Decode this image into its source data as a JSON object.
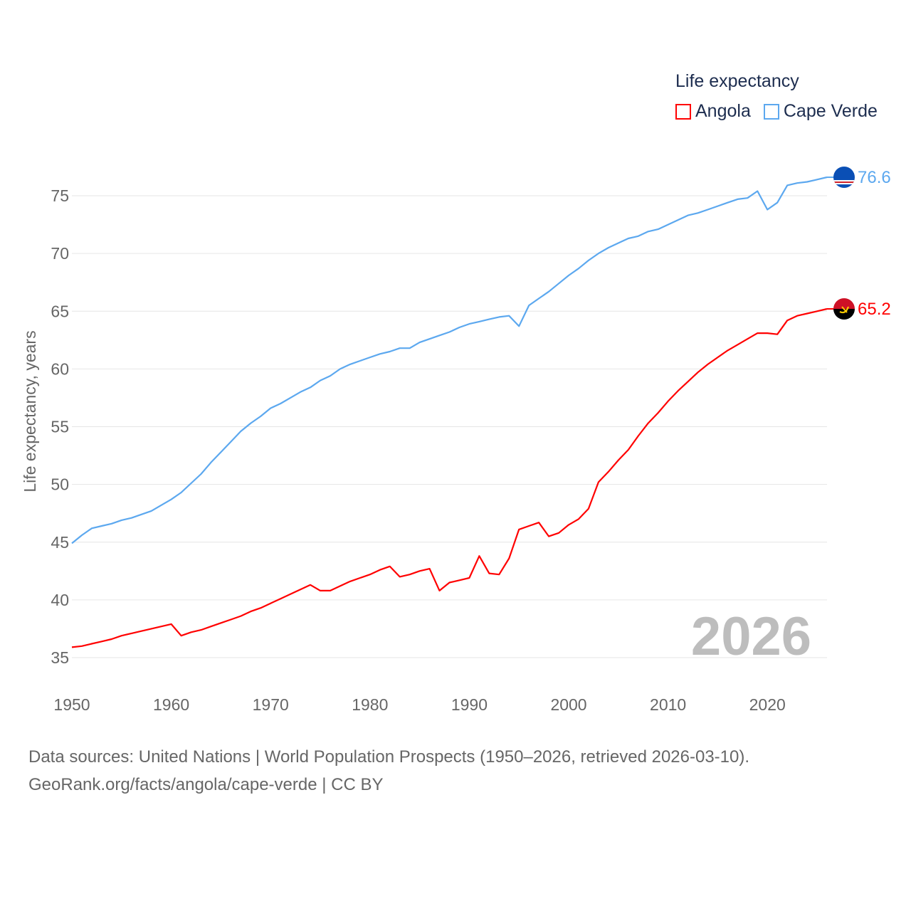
{
  "chart_data": {
    "type": "line",
    "title": "Life expectancy",
    "xlabel": "",
    "ylabel": "Life expectancy, years",
    "xlim": [
      1950,
      2026
    ],
    "ylim": [
      33,
      78
    ],
    "x_ticks": [
      1950,
      1960,
      1970,
      1980,
      1990,
      2000,
      2010,
      2020
    ],
    "y_ticks": [
      35,
      40,
      45,
      50,
      55,
      60,
      65,
      70,
      75
    ],
    "grid": true,
    "legend_placement": "top-right",
    "year_watermark": "2026",
    "x": [
      1950,
      1951,
      1952,
      1953,
      1954,
      1955,
      1956,
      1957,
      1958,
      1959,
      1960,
      1961,
      1962,
      1963,
      1964,
      1965,
      1966,
      1967,
      1968,
      1969,
      1970,
      1971,
      1972,
      1973,
      1974,
      1975,
      1976,
      1977,
      1978,
      1979,
      1980,
      1981,
      1982,
      1983,
      1984,
      1985,
      1986,
      1987,
      1988,
      1989,
      1990,
      1991,
      1992,
      1993,
      1994,
      1995,
      1996,
      1997,
      1998,
      1999,
      2000,
      2001,
      2002,
      2003,
      2004,
      2005,
      2006,
      2007,
      2008,
      2009,
      2010,
      2011,
      2012,
      2013,
      2014,
      2015,
      2016,
      2017,
      2018,
      2019,
      2020,
      2021,
      2022,
      2023,
      2024,
      2025,
      2026
    ],
    "series": [
      {
        "name": "Angola",
        "color": "#ff0000",
        "end_label": "65.2",
        "values": [
          35.9,
          36.0,
          36.2,
          36.4,
          36.6,
          36.9,
          37.1,
          37.3,
          37.5,
          37.7,
          37.9,
          36.9,
          37.2,
          37.4,
          37.7,
          38.0,
          38.3,
          38.6,
          39.0,
          39.3,
          39.7,
          40.1,
          40.5,
          40.9,
          41.3,
          40.8,
          40.8,
          41.2,
          41.6,
          41.9,
          42.2,
          42.6,
          42.9,
          42.0,
          42.2,
          42.5,
          42.7,
          40.8,
          41.5,
          41.7,
          41.9,
          43.8,
          42.3,
          42.2,
          43.6,
          46.1,
          46.4,
          46.7,
          45.5,
          45.8,
          46.5,
          47.0,
          47.9,
          50.2,
          51.1,
          52.1,
          53.0,
          54.2,
          55.3,
          56.2,
          57.2,
          58.1,
          58.9,
          59.7,
          60.4,
          61.0,
          61.6,
          62.1,
          62.6,
          63.1,
          63.1,
          63.0,
          64.2,
          64.6,
          64.8,
          65.0,
          65.2
        ]
      },
      {
        "name": "Cape Verde",
        "color": "#5ca8ef",
        "end_label": "76.6",
        "values": [
          44.9,
          45.6,
          46.2,
          46.4,
          46.6,
          46.9,
          47.1,
          47.4,
          47.7,
          48.2,
          48.7,
          49.3,
          50.1,
          50.9,
          51.9,
          52.8,
          53.7,
          54.6,
          55.3,
          55.9,
          56.6,
          57.0,
          57.5,
          58.0,
          58.4,
          59.0,
          59.4,
          60.0,
          60.4,
          60.7,
          61.0,
          61.3,
          61.5,
          61.8,
          61.8,
          62.3,
          62.6,
          62.9,
          63.2,
          63.6,
          63.9,
          64.1,
          64.3,
          64.5,
          64.6,
          63.7,
          65.5,
          66.1,
          66.7,
          67.4,
          68.1,
          68.7,
          69.4,
          70.0,
          70.5,
          70.9,
          71.3,
          71.5,
          71.9,
          72.1,
          72.5,
          72.9,
          73.3,
          73.5,
          73.8,
          74.1,
          74.4,
          74.7,
          74.8,
          75.4,
          73.8,
          74.4,
          75.9,
          76.1,
          76.2,
          76.4,
          76.6
        ]
      }
    ]
  },
  "footer": {
    "line1": "Data sources: United Nations | World Population Prospects (1950–2026, retrieved 2026-03-10).",
    "line2": "GeoRank.org/facts/angola/cape-verde | CC BY"
  }
}
